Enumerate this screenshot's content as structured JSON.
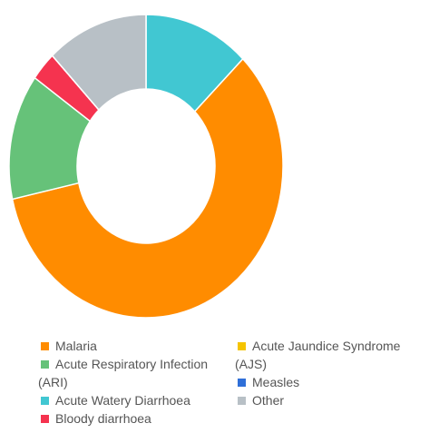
{
  "chart_data": {
    "type": "pie",
    "categories": [
      "Acute Watery Diarrhoea",
      "Malaria",
      "Acute Respiratory Infection (ARI)",
      "Bloody diarrhoea",
      "Acute Jaundice Syndrome (AJS)",
      "Measles",
      "Other"
    ],
    "values": [
      12.5,
      59,
      13.4,
      3.1,
      0,
      0,
      12
    ],
    "colors": [
      "#41c7d2",
      "#ff8c00",
      "#66c279",
      "#f5334f",
      "#f5c400",
      "#2f6fd8",
      "#b8c0c6"
    ],
    "donut": true
  }
}
